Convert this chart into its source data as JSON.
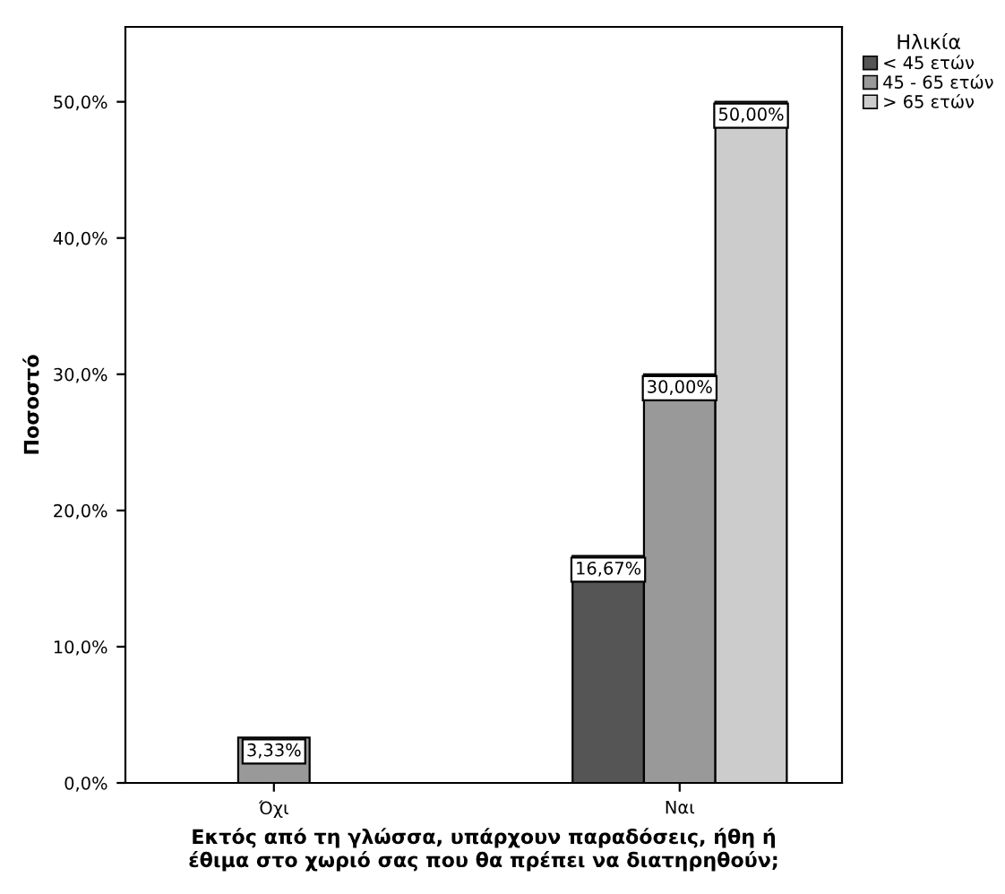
{
  "chart_data": {
    "type": "bar",
    "xlabel": "Εκτός από τη γλώσσα, υπάρχουν παραδόσεις, ήθη ή\nέθιμα στο χωριό σας που θα πρέπει να διατηρηθούν;",
    "ylabel": "Ποσοστό",
    "legend_title": "Ηλικία",
    "categories": [
      "Όχι",
      "Ναι"
    ],
    "series": [
      {
        "name": "< 45 ετών",
        "color": "#555555",
        "values": [
          null,
          16.67
        ],
        "value_labels": [
          null,
          "16,67%"
        ]
      },
      {
        "name": "45 - 65 ετών",
        "color": "#999999",
        "values": [
          3.33,
          30.0
        ],
        "value_labels": [
          "3,33%",
          "30,00%"
        ]
      },
      {
        "name": "> 65 ετών",
        "color": "#cccccc",
        "values": [
          null,
          50.0
        ],
        "value_labels": [
          null,
          "50,00%"
        ]
      }
    ],
    "ylim": [
      0,
      55.5
    ],
    "yticks": [
      {
        "value": 0,
        "label": "0,0%"
      },
      {
        "value": 10,
        "label": "10,0%"
      },
      {
        "value": 20,
        "label": "20,0%"
      },
      {
        "value": 30,
        "label": "30,0%"
      },
      {
        "value": 40,
        "label": "40,0%"
      },
      {
        "value": 50,
        "label": "50,0%"
      }
    ],
    "grid": false,
    "legend": "top right"
  }
}
